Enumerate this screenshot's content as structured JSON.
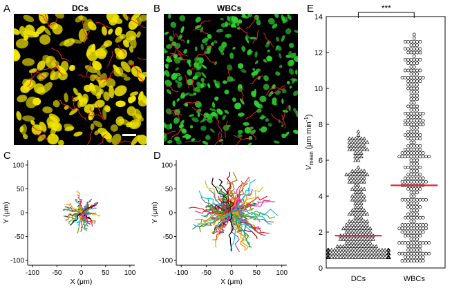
{
  "panels": {
    "A": {
      "letter": "A",
      "title": "DCs",
      "cell_color": "#f2e600",
      "track_color": "#e8242c"
    },
    "B": {
      "letter": "B",
      "title": "WBCs",
      "cell_color": "#2fd12f",
      "track_color": "#e8242c"
    },
    "C": {
      "letter": "C"
    },
    "D": {
      "letter": "D"
    },
    "E": {
      "letter": "E"
    }
  },
  "chart_data": [
    {
      "type": "line",
      "panel": "C",
      "xlabel": "X (μm)",
      "ylabel": "Y (μm)",
      "xlim": [
        -110,
        110
      ],
      "ylim": [
        -110,
        110
      ],
      "xticks": [
        -100,
        -50,
        0,
        50,
        100
      ],
      "yticks": [
        -100,
        -50,
        0,
        50,
        100
      ],
      "tracks_count": 60,
      "track_extent_approx": [
        -45,
        40
      ]
    },
    {
      "type": "line",
      "panel": "D",
      "xlabel": "X (μm)",
      "ylabel": "Y (μm)",
      "xlim": [
        -110,
        110
      ],
      "ylim": [
        -110,
        110
      ],
      "xticks": [
        -100,
        -50,
        0,
        50,
        100
      ],
      "yticks": [
        -100,
        -50,
        0,
        50,
        100
      ],
      "tracks_count": 120,
      "track_extent_approx": [
        -85,
        95
      ]
    },
    {
      "type": "scatter",
      "panel": "E",
      "categories": [
        "DCs",
        "WBCs"
      ],
      "ylabel": "V_mean (μm min⁻¹)",
      "ylabel_main": "V",
      "ylabel_sub": "mean",
      "ylabel_unit": " (μm min",
      "ylabel_exp": "-1",
      "ylabel_close": ")",
      "ylim": [
        0,
        14
      ],
      "yticks": [
        0,
        2,
        4,
        6,
        8,
        10,
        12,
        14
      ],
      "series": [
        {
          "name": "DCs",
          "marker": "triangle",
          "mean": 1.8,
          "min": 0.6,
          "max": 7.6,
          "n_approx": 320
        },
        {
          "name": "WBCs",
          "marker": "circle",
          "mean": 4.6,
          "min": 0.4,
          "max": 13.1,
          "n_approx": 330
        }
      ],
      "mean_line_color": "#e8242c",
      "significance": "***"
    }
  ]
}
